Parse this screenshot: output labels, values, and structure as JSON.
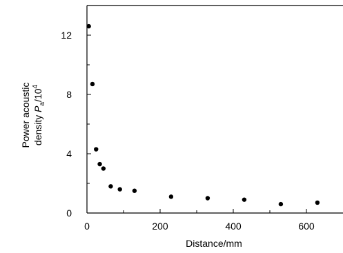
{
  "chart_data": {
    "type": "scatter",
    "title": "",
    "xlabel": "Distance/mm",
    "ylabel": {
      "line1": "Power acoustic",
      "line2_prefix": "density ",
      "line2_symbol": "P",
      "line2_subscript": "a",
      "line2_suffix": "/10",
      "line2_superscript": "4"
    },
    "xlim": [
      0,
      700
    ],
    "ylim": [
      0,
      14
    ],
    "x_ticks": [
      0,
      200,
      400,
      600
    ],
    "x_minor_ticks": [
      100,
      300,
      500
    ],
    "y_ticks": [
      0,
      4,
      8,
      12
    ],
    "y_minor_ticks": [
      2,
      6,
      10,
      14
    ],
    "grid": false,
    "marker_color": "#000000",
    "points": [
      {
        "x": 5,
        "y": 12.6
      },
      {
        "x": 15,
        "y": 8.7
      },
      {
        "x": 25,
        "y": 4.3
      },
      {
        "x": 35,
        "y": 3.3
      },
      {
        "x": 45,
        "y": 3.0
      },
      {
        "x": 65,
        "y": 1.8
      },
      {
        "x": 90,
        "y": 1.6
      },
      {
        "x": 130,
        "y": 1.5
      },
      {
        "x": 230,
        "y": 1.1
      },
      {
        "x": 330,
        "y": 1.0
      },
      {
        "x": 430,
        "y": 0.9
      },
      {
        "x": 530,
        "y": 0.6
      },
      {
        "x": 630,
        "y": 0.7
      }
    ]
  }
}
